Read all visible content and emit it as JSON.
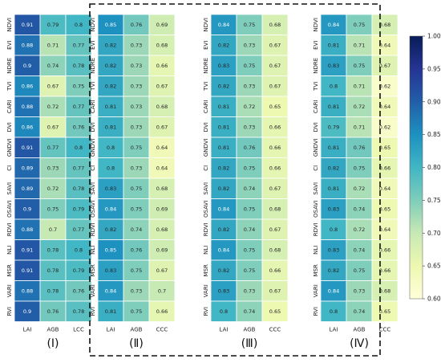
{
  "chart_data": {
    "type": "heatmap",
    "colormap": "YlGnBu",
    "colorbar": {
      "min": 0.6,
      "max": 1.0,
      "ticks": [
        "1.00",
        "0.95",
        "0.90",
        "0.85",
        "0.80",
        "0.75",
        "0.70",
        "0.65",
        "0.60"
      ]
    },
    "rows": [
      "NDVI",
      "EVI",
      "NDRE",
      "TVI",
      "CARI",
      "DVI",
      "GNDVI",
      "CI",
      "SAVI",
      "OSAVI",
      "RDVI",
      "NLI",
      "MSR",
      "VARI",
      "RVI"
    ],
    "dashed_box_around": [
      "(Ⅱ)",
      "(Ⅲ)",
      "(Ⅳ)"
    ],
    "panels": [
      {
        "label": "(Ⅰ)",
        "columns": [
          "LAI",
          "AGB",
          "LCC"
        ],
        "values": [
          [
            0.91,
            0.79,
            0.8
          ],
          [
            0.88,
            0.71,
            0.77
          ],
          [
            0.9,
            0.74,
            0.78
          ],
          [
            0.86,
            0.67,
            0.75
          ],
          [
            0.88,
            0.72,
            0.77
          ],
          [
            0.86,
            0.67,
            0.76
          ],
          [
            0.91,
            0.77,
            0.8
          ],
          [
            0.89,
            0.73,
            0.77
          ],
          [
            0.89,
            0.72,
            0.78
          ],
          [
            0.9,
            0.75,
            0.79
          ],
          [
            0.88,
            0.7,
            0.77
          ],
          [
            0.91,
            0.78,
            0.8
          ],
          [
            0.91,
            0.78,
            0.79
          ],
          [
            0.88,
            0.78,
            0.76
          ],
          [
            0.9,
            0.76,
            0.78
          ]
        ]
      },
      {
        "label": "(Ⅱ)",
        "columns": [
          "LAI",
          "AGB",
          "CCC"
        ],
        "values": [
          [
            0.85,
            0.76,
            0.69
          ],
          [
            0.82,
            0.73,
            0.68
          ],
          [
            0.82,
            0.73,
            0.66
          ],
          [
            0.82,
            0.73,
            0.67
          ],
          [
            0.81,
            0.73,
            0.68
          ],
          [
            0.81,
            0.73,
            0.67
          ],
          [
            0.8,
            0.75,
            0.64
          ],
          [
            0.8,
            0.73,
            0.64
          ],
          [
            0.83,
            0.75,
            0.68
          ],
          [
            0.84,
            0.75,
            0.69
          ],
          [
            0.82,
            0.74,
            0.68
          ],
          [
            0.85,
            0.76,
            0.69
          ],
          [
            0.83,
            0.75,
            0.67
          ],
          [
            0.84,
            0.73,
            0.7
          ],
          [
            0.81,
            0.75,
            0.66
          ]
        ]
      },
      {
        "label": "(Ⅲ)",
        "columns": [
          "LAI",
          "AGB",
          "CCC"
        ],
        "values": [
          [
            0.84,
            0.75,
            0.68
          ],
          [
            0.82,
            0.73,
            0.67
          ],
          [
            0.83,
            0.75,
            0.67
          ],
          [
            0.82,
            0.73,
            0.67
          ],
          [
            0.81,
            0.72,
            0.65
          ],
          [
            0.81,
            0.73,
            0.66
          ],
          [
            0.81,
            0.76,
            0.66
          ],
          [
            0.82,
            0.75,
            0.66
          ],
          [
            0.82,
            0.74,
            0.67
          ],
          [
            0.84,
            0.75,
            0.68
          ],
          [
            0.82,
            0.74,
            0.67
          ],
          [
            0.84,
            0.75,
            0.68
          ],
          [
            0.82,
            0.75,
            0.66
          ],
          [
            0.83,
            0.73,
            0.67
          ],
          [
            0.8,
            0.74,
            0.65
          ]
        ]
      },
      {
        "label": "(Ⅳ)",
        "columns": [
          "LAI",
          "AGB",
          "CCC"
        ],
        "values": [
          [
            0.84,
            0.75,
            0.68
          ],
          [
            0.81,
            0.71,
            0.64
          ],
          [
            0.83,
            0.75,
            0.67
          ],
          [
            0.8,
            0.71,
            0.62
          ],
          [
            0.81,
            0.72,
            0.64
          ],
          [
            0.79,
            0.71,
            0.62
          ],
          [
            0.81,
            0.76,
            0.65
          ],
          [
            0.82,
            0.75,
            0.66
          ],
          [
            0.81,
            0.72,
            0.64
          ],
          [
            0.83,
            0.74,
            0.65
          ],
          [
            0.8,
            0.72,
            0.64
          ],
          [
            0.83,
            0.74,
            0.66
          ],
          [
            0.82,
            0.75,
            0.66
          ],
          [
            0.84,
            0.73,
            0.68
          ],
          [
            0.8,
            0.74,
            0.65
          ]
        ]
      }
    ]
  }
}
